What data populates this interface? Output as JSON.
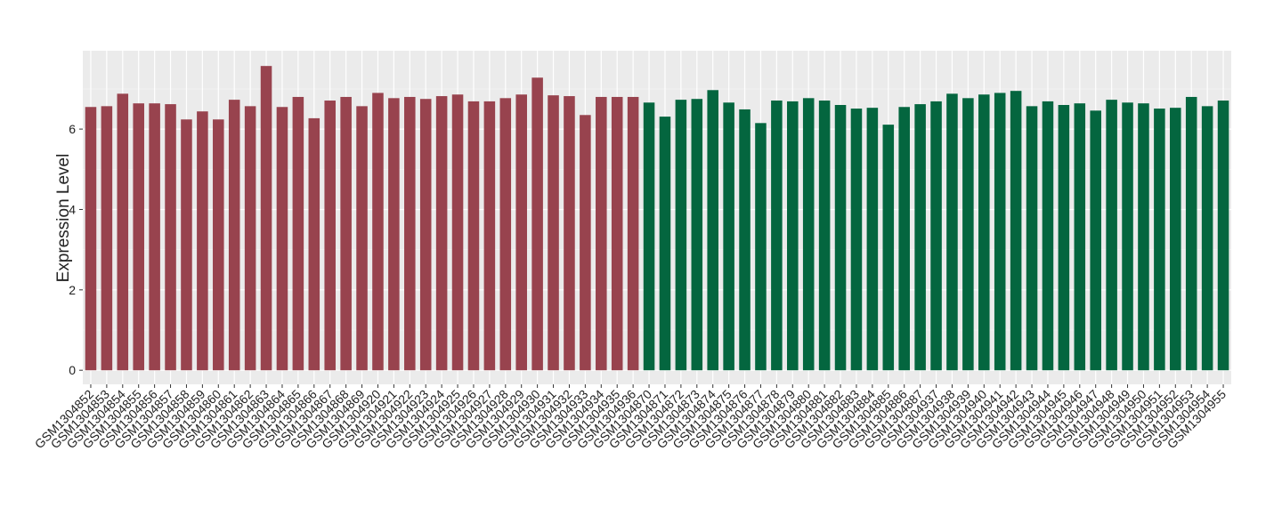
{
  "chart_data": {
    "type": "bar",
    "y_label": "Expression Level",
    "categories": [
      "GSM1304852",
      "GSM1304853",
      "GSM1304854",
      "GSM1304855",
      "GSM1304856",
      "GSM1304857",
      "GSM1304858",
      "GSM1304859",
      "GSM1304860",
      "GSM1304861",
      "GSM1304862",
      "GSM1304863",
      "GSM1304864",
      "GSM1304865",
      "GSM1304866",
      "GSM1304867",
      "GSM1304868",
      "GSM1304869",
      "GSM1304920",
      "GSM1304921",
      "GSM1304922",
      "GSM1304923",
      "GSM1304924",
      "GSM1304925",
      "GSM1304926",
      "GSM1304927",
      "GSM1304928",
      "GSM1304929",
      "GSM1304930",
      "GSM1304931",
      "GSM1304932",
      "GSM1304933",
      "GSM1304934",
      "GSM1304935",
      "GSM1304936",
      "GSM1304870",
      "GSM1304871",
      "GSM1304872",
      "GSM1304873",
      "GSM1304874",
      "GSM1304875",
      "GSM1304876",
      "GSM1304877",
      "GSM1304878",
      "GSM1304879",
      "GSM1304880",
      "GSM1304881",
      "GSM1304882",
      "GSM1304883",
      "GSM1304884",
      "GSM1304885",
      "GSM1304886",
      "GSM1304887",
      "GSM1304937",
      "GSM1304938",
      "GSM1304939",
      "GSM1304940",
      "GSM1304941",
      "GSM1304942",
      "GSM1304943",
      "GSM1304944",
      "GSM1304945",
      "GSM1304946",
      "GSM1304947",
      "GSM1304948",
      "GSM1304949",
      "GSM1304950",
      "GSM1304951",
      "GSM1304952",
      "GSM1304953",
      "GSM1304954",
      "GSM1304955"
    ],
    "series": [
      {
        "color": "#98434e",
        "values": [
          6.55,
          6.57,
          6.88,
          6.64,
          6.64,
          6.62,
          6.24,
          6.44,
          6.24,
          6.73,
          6.57,
          7.57,
          6.55,
          6.8,
          6.27,
          6.71,
          6.8,
          6.57,
          6.9,
          6.77,
          6.8,
          6.75,
          6.82,
          6.86,
          6.69,
          6.69,
          6.77,
          6.86,
          7.28,
          6.84,
          6.82,
          6.35,
          6.8,
          6.8,
          6.8,
          null,
          null,
          null,
          null,
          null,
          null,
          null,
          null,
          null,
          null,
          null,
          null,
          null,
          null,
          null,
          null,
          null,
          null,
          null,
          null,
          null,
          null,
          null,
          null,
          null,
          null,
          null,
          null,
          null,
          null,
          null,
          null,
          null,
          null,
          null,
          null,
          null
        ]
      },
      {
        "color": "#04663f",
        "values": [
          null,
          null,
          null,
          null,
          null,
          null,
          null,
          null,
          null,
          null,
          null,
          null,
          null,
          null,
          null,
          null,
          null,
          null,
          null,
          null,
          null,
          null,
          null,
          null,
          null,
          null,
          null,
          null,
          null,
          null,
          null,
          null,
          null,
          null,
          null,
          6.66,
          6.31,
          6.73,
          6.75,
          6.97,
          6.66,
          6.49,
          6.15,
          6.71,
          6.69,
          6.77,
          6.71,
          6.6,
          6.51,
          6.53,
          6.11,
          6.55,
          6.62,
          6.69,
          6.88,
          6.77,
          6.86,
          6.9,
          6.95,
          6.57,
          6.69,
          6.6,
          6.64,
          6.46,
          6.73,
          6.66,
          6.64,
          6.51,
          6.53,
          6.8,
          6.57,
          6.71
        ]
      }
    ],
    "ylim": [
      -0.35,
      7.95
    ],
    "yticks": [
      0,
      2,
      4,
      6
    ],
    "grid": true
  }
}
